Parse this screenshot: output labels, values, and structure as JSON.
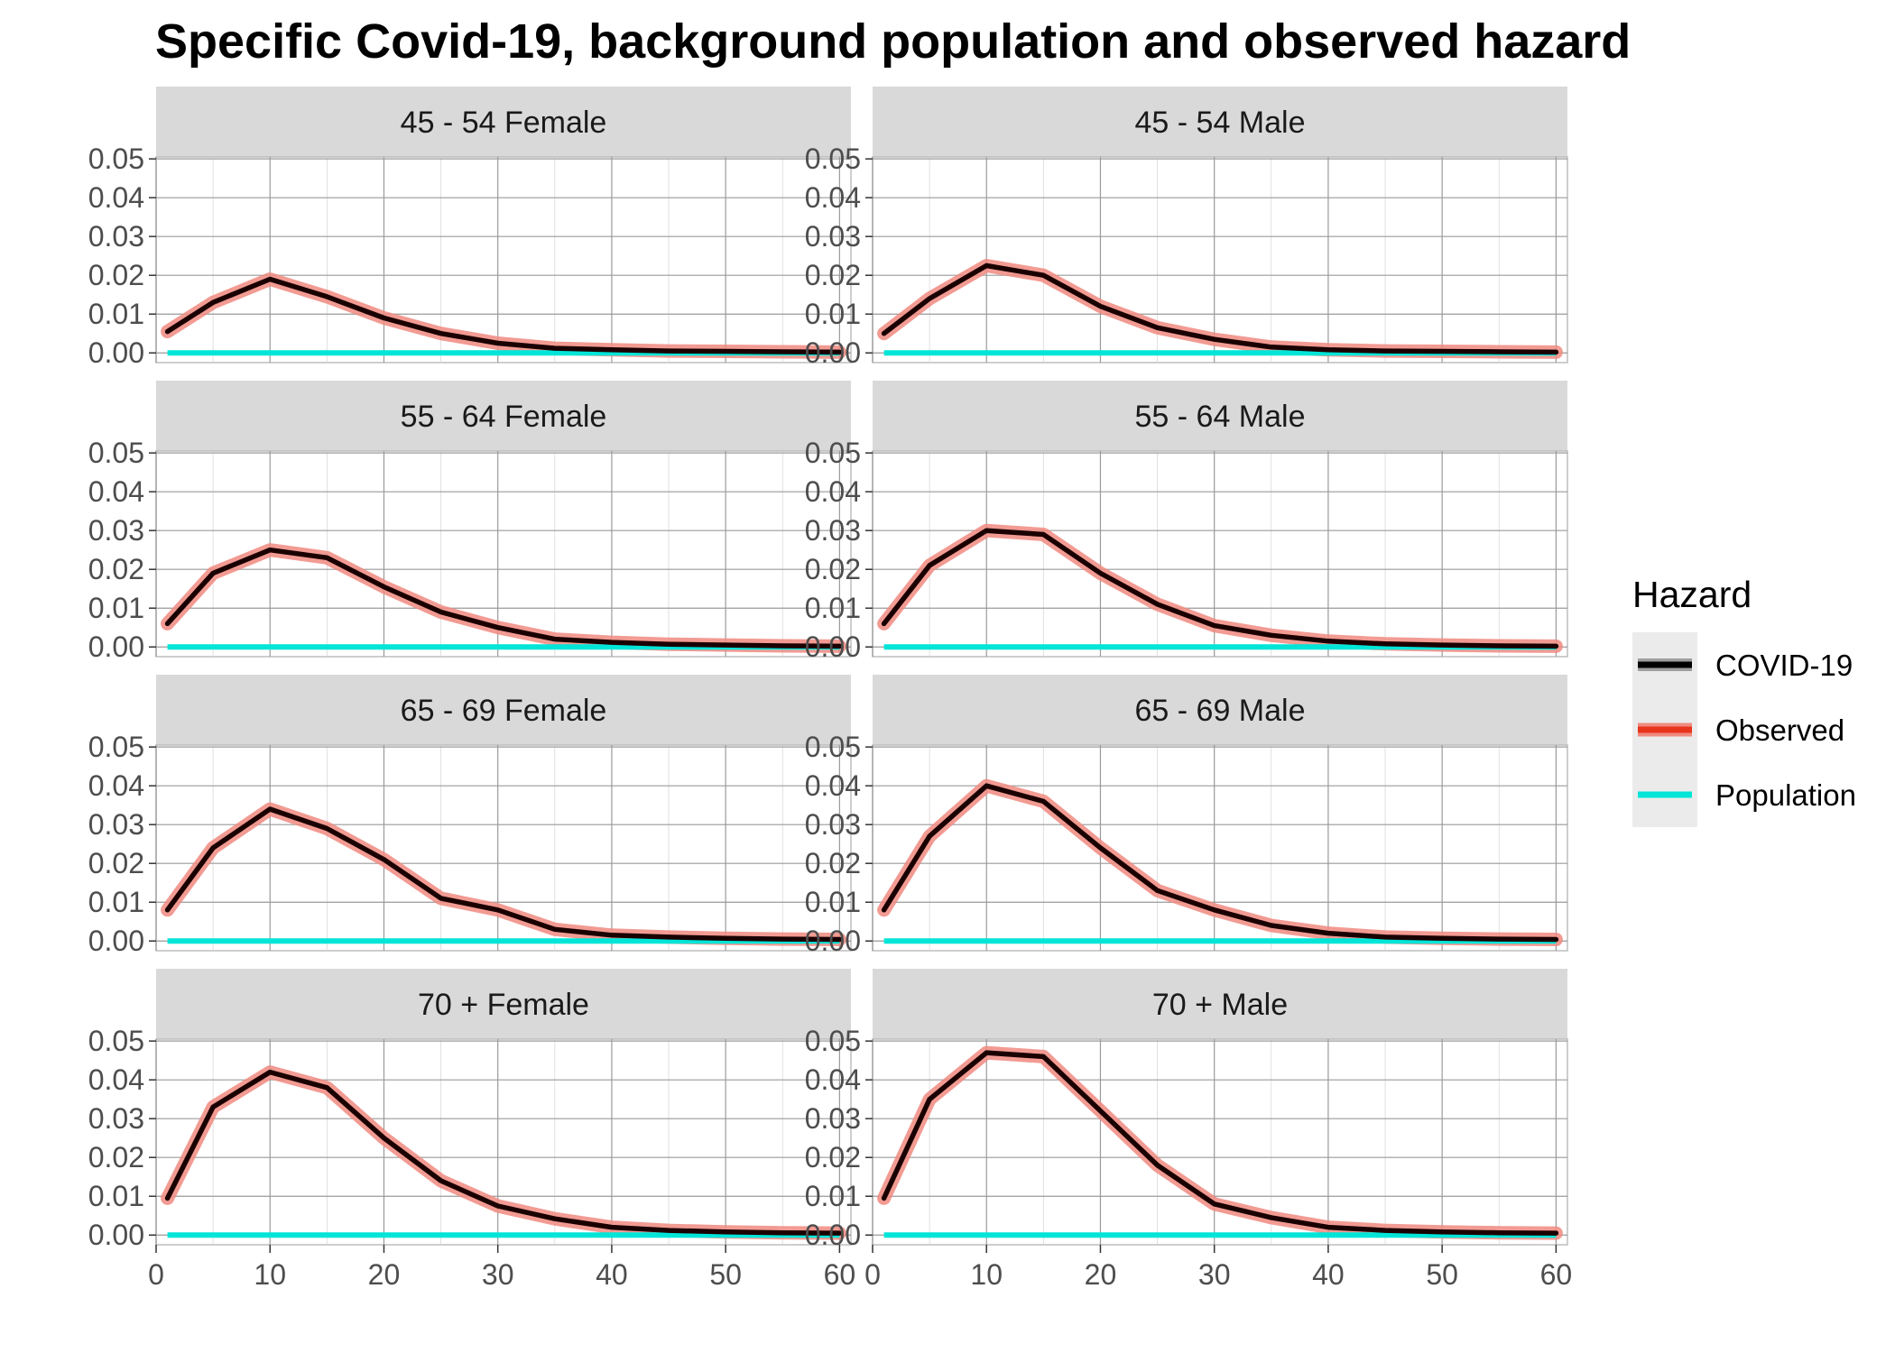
{
  "chart_data": {
    "type": "line",
    "title": "Specific Covid-19, background population and observed hazard",
    "xlabel": "",
    "ylabel": "",
    "xlim": [
      0,
      61
    ],
    "ylim": [
      -0.0025,
      0.0505
    ],
    "x_ticks": [
      "0",
      "10",
      "20",
      "30",
      "40",
      "50",
      "60"
    ],
    "y_ticks": [
      "0.00",
      "0.01",
      "0.02",
      "0.03",
      "0.04",
      "0.05"
    ],
    "grid": true,
    "legend": {
      "title": "Hazard",
      "position": "right",
      "items": [
        {
          "name": "COVID-19",
          "color": "#000000"
        },
        {
          "name": "Observed",
          "color": "#e8341c"
        },
        {
          "name": "Population",
          "color": "#00e5d8"
        }
      ]
    },
    "colors": {
      "covid": "#1a0000",
      "observed_band": "#f08a80",
      "population": "#00e5d8",
      "strip_bg": "#d9d9d9",
      "grid": "#c8c8c8"
    },
    "x": [
      1,
      5,
      10,
      15,
      20,
      25,
      30,
      35,
      40,
      45,
      50,
      55,
      60
    ],
    "panels": [
      {
        "label": "45 - 54 Female",
        "series": [
          {
            "name": "COVID-19",
            "values": [
              0.0055,
              0.013,
              0.019,
              0.0145,
              0.009,
              0.005,
              0.0025,
              0.0012,
              0.0008,
              0.0005,
              0.0004,
              0.0003,
              0.0002
            ]
          },
          {
            "name": "Population",
            "values": [
              0,
              0,
              0,
              0,
              0,
              0,
              0,
              0,
              0,
              0,
              0,
              0,
              0
            ]
          }
        ]
      },
      {
        "label": "45 - 54 Male",
        "series": [
          {
            "name": "COVID-19",
            "values": [
              0.005,
              0.014,
              0.0225,
              0.02,
              0.012,
              0.0065,
              0.0035,
              0.0015,
              0.0008,
              0.0005,
              0.0004,
              0.0003,
              0.0002
            ]
          },
          {
            "name": "Population",
            "values": [
              0,
              0,
              0,
              0,
              0,
              0,
              0,
              0,
              0,
              0,
              0,
              0,
              0
            ]
          }
        ]
      },
      {
        "label": "55 - 64 Female",
        "series": [
          {
            "name": "COVID-19",
            "values": [
              0.006,
              0.019,
              0.025,
              0.023,
              0.0155,
              0.009,
              0.005,
              0.002,
              0.0012,
              0.0007,
              0.0005,
              0.0003,
              0.0002
            ]
          },
          {
            "name": "Population",
            "values": [
              0,
              0,
              0,
              0,
              0,
              0,
              0,
              0,
              0,
              0,
              0,
              0,
              0
            ]
          }
        ]
      },
      {
        "label": "55 - 64 Male",
        "series": [
          {
            "name": "COVID-19",
            "values": [
              0.006,
              0.021,
              0.03,
              0.029,
              0.019,
              0.011,
              0.0055,
              0.003,
              0.0015,
              0.0008,
              0.0005,
              0.0003,
              0.0002
            ]
          },
          {
            "name": "Population",
            "values": [
              0,
              0,
              0,
              0,
              0,
              0,
              0,
              0,
              0,
              0,
              0,
              0,
              0
            ]
          }
        ]
      },
      {
        "label": "65 - 69 Female",
        "series": [
          {
            "name": "COVID-19",
            "values": [
              0.008,
              0.024,
              0.034,
              0.029,
              0.021,
              0.011,
              0.008,
              0.003,
              0.0015,
              0.001,
              0.0007,
              0.0005,
              0.0004
            ]
          },
          {
            "name": "Population",
            "values": [
              0,
              0,
              0,
              0,
              0,
              0,
              0,
              0,
              0,
              0,
              0,
              0,
              0
            ]
          }
        ]
      },
      {
        "label": "65 - 69 Male",
        "series": [
          {
            "name": "COVID-19",
            "values": [
              0.008,
              0.027,
              0.04,
              0.036,
              0.024,
              0.013,
              0.008,
              0.004,
              0.002,
              0.001,
              0.0007,
              0.0005,
              0.0004
            ]
          },
          {
            "name": "Population",
            "values": [
              0,
              0,
              0,
              0,
              0,
              0,
              0,
              0,
              0,
              0,
              0,
              0,
              0
            ]
          }
        ]
      },
      {
        "label": "70 + Female",
        "series": [
          {
            "name": "COVID-19",
            "values": [
              0.0095,
              0.033,
              0.042,
              0.038,
              0.025,
              0.014,
              0.0075,
              0.0042,
              0.002,
              0.0012,
              0.0008,
              0.0006,
              0.0005
            ]
          },
          {
            "name": "Population",
            "values": [
              0,
              0,
              0,
              0,
              0,
              0,
              0,
              0,
              0,
              0,
              0,
              0,
              0
            ]
          }
        ]
      },
      {
        "label": "70 + Male",
        "series": [
          {
            "name": "COVID-19",
            "values": [
              0.0095,
              0.035,
              0.047,
              0.046,
              0.032,
              0.018,
              0.008,
              0.0045,
              0.002,
              0.0012,
              0.0008,
              0.0006,
              0.0005
            ]
          },
          {
            "name": "Population",
            "values": [
              0,
              0,
              0,
              0,
              0,
              0,
              0,
              0,
              0,
              0,
              0,
              0,
              0
            ]
          }
        ]
      }
    ]
  }
}
